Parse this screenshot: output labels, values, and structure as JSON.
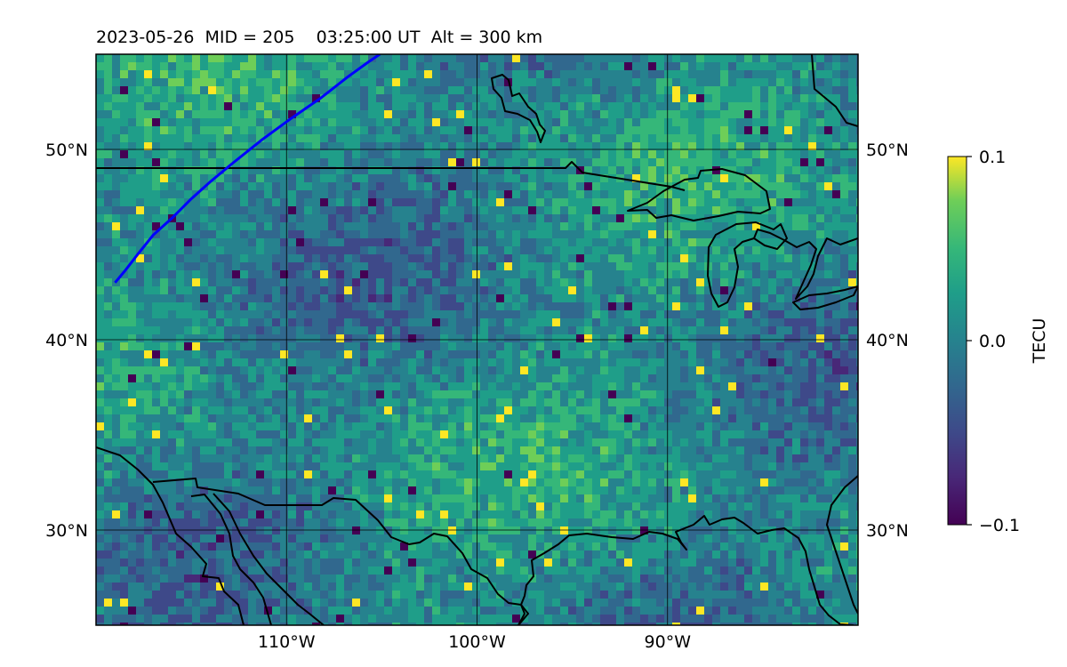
{
  "header": {
    "date": "2023-05-26",
    "mid_text": "MID = 205",
    "time_text": "03:25:00  UT",
    "alt_text": "Alt = 300 km"
  },
  "map": {
    "projection": "equirectangular",
    "lon_range": [
      -120,
      -80
    ],
    "lat_range": [
      25,
      55
    ],
    "lat_ticks": [
      {
        "value": 50,
        "label": "50°N"
      },
      {
        "value": 40,
        "label": "40°N"
      },
      {
        "value": 30,
        "label": "30°N"
      }
    ],
    "lon_ticks": [
      {
        "value": -110,
        "label": "110°W"
      },
      {
        "value": -100,
        "label": "100°W"
      },
      {
        "value": -90,
        "label": "90°W"
      }
    ],
    "gridlines": true,
    "track_color": "#0000ff",
    "track_points": [
      [
        -119,
        43
      ],
      [
        -118.5,
        43.6
      ],
      [
        -117.8,
        44.5
      ],
      [
        -117,
        45.5
      ],
      [
        -116,
        46.4
      ],
      [
        -115,
        47.4
      ],
      [
        -114,
        48.3
      ],
      [
        -112.8,
        49.3
      ],
      [
        -111.3,
        50.5
      ],
      [
        -109.8,
        51.6
      ],
      [
        -108.2,
        52.7
      ],
      [
        -106.8,
        53.8
      ],
      [
        -105.7,
        54.6
      ],
      [
        -105.1,
        55
      ]
    ]
  },
  "colorbar": {
    "label": "TECU",
    "ticks": [
      {
        "value": 0.1,
        "label": "0.1"
      },
      {
        "value": 0.0,
        "label": "0.0"
      },
      {
        "value": -0.1,
        "label": "−0.1"
      }
    ],
    "range": [
      -0.1,
      0.1
    ],
    "colormap": "viridis"
  }
}
